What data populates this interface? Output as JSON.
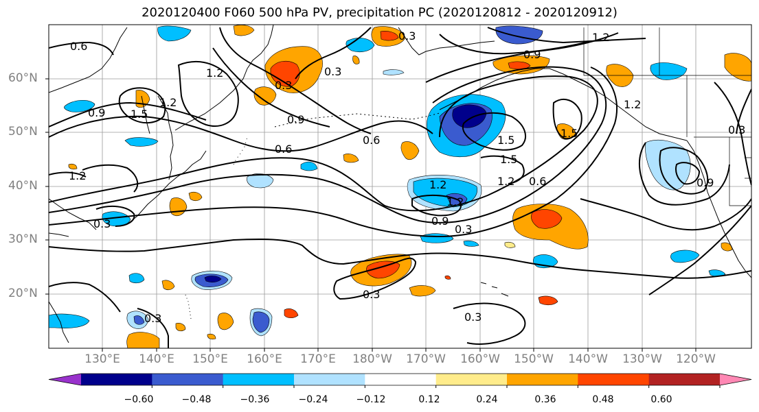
{
  "title": "2020120400 F060 500 hPa PV, precipitation PC (2020120812 - 2020120912)",
  "lat_labels": [
    "60°N",
    "50°N",
    "40°N",
    "30°N",
    "20°N"
  ],
  "lon_labels": [
    "130°E",
    "140°E",
    "150°E",
    "160°E",
    "170°E",
    "180°W",
    "170°W",
    "160°W",
    "150°W",
    "140°W",
    "130°W",
    "120°W"
  ],
  "colorbar": {
    "ticks": [
      "−0.60",
      "−0.48",
      "−0.36",
      "−0.24",
      "−0.12",
      "0.12",
      "0.24",
      "0.36",
      "0.48",
      "0.60"
    ],
    "colors": [
      "#9932cc",
      "#00008b",
      "#3a5bcf",
      "#00bfff",
      "#b0e2ff",
      "#ffffff",
      "#ffec8b",
      "#ffa500",
      "#ff4500",
      "#b22222",
      "#ff88b4"
    ],
    "extend": "both"
  },
  "contour_labels": [
    "0.6",
    "0.9",
    "1.2",
    "1.5",
    "0.3",
    "0.9",
    "0.6",
    "0.6",
    "1.2",
    "1.5",
    "1.5",
    "1.2",
    "0.6",
    "0.9",
    "0.3",
    "1.2",
    "1.2",
    "0.9",
    "1.2",
    "0.3",
    "0.3",
    "0.3",
    "0.3",
    "0.3",
    "0.9",
    "1.2",
    "0.3",
    "0.3",
    "1.5",
    "1.2"
  ]
}
